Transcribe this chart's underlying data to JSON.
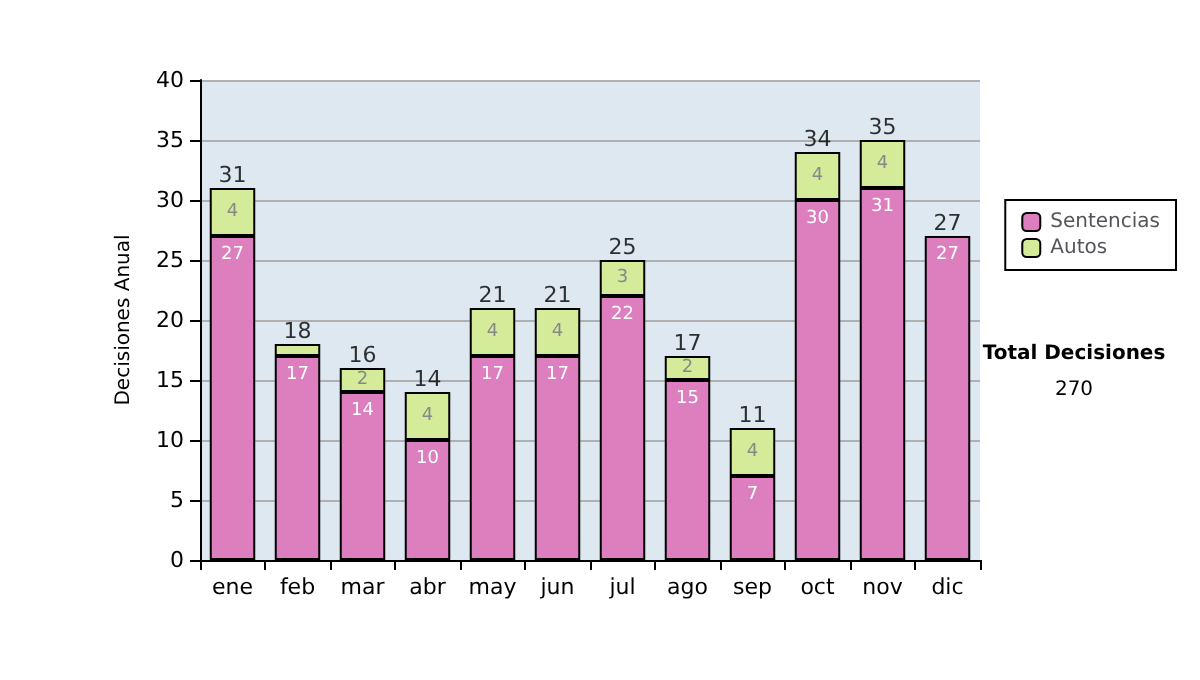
{
  "chart_data": {
    "type": "bar",
    "stacked": true,
    "ylabel": "Decisiones Anual",
    "categories": [
      "ene",
      "feb",
      "mar",
      "abr",
      "may",
      "jun",
      "jul",
      "ago",
      "sep",
      "oct",
      "nov",
      "dic"
    ],
    "series": [
      {
        "name": "Sentencias",
        "color": "#dd7fbf",
        "values": [
          27,
          17,
          14,
          10,
          17,
          17,
          22,
          15,
          7,
          30,
          31,
          27
        ],
        "value_labels": [
          "27",
          "17",
          "14",
          "10",
          "17",
          "17",
          "22",
          "15",
          "7",
          "30",
          "31",
          "27"
        ]
      },
      {
        "name": "Autos",
        "color": "#d4ec9a",
        "values": [
          4,
          1,
          2,
          4,
          4,
          4,
          3,
          2,
          4,
          4,
          4,
          0
        ],
        "value_labels": [
          "4",
          null,
          "2",
          "4",
          "4",
          "4",
          "3",
          "2",
          "4",
          "4",
          "4",
          null
        ]
      }
    ],
    "totals": [
      "31",
      "18",
      "16",
      "14",
      "21",
      "21",
      "25",
      "17",
      "11",
      "34",
      "35",
      "27"
    ],
    "ylim": [
      0,
      40
    ],
    "yticks": [
      0,
      5,
      10,
      15,
      20,
      25,
      30,
      35,
      40
    ],
    "grid": "y",
    "legend": "right",
    "annotations": [
      "Total Decisiones",
      "270"
    ]
  }
}
